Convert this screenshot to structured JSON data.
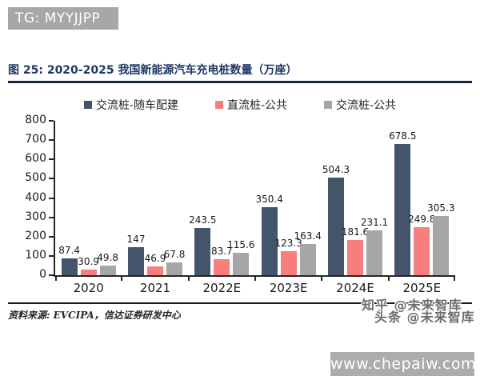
{
  "banner": {
    "text": "TG: MYYJJPP"
  },
  "figure": {
    "title": "图 25: 2020-2025 我国新能源汽车充电桩数量（万座）",
    "source": "资料来源: EVCIPA，信达证券研发中心"
  },
  "chart_data": {
    "type": "bar",
    "title": "2020-2025 我国新能源汽车充电桩数量（万座）",
    "categories": [
      "2020",
      "2021",
      "2022E",
      "2023E",
      "2024E",
      "2025E"
    ],
    "series": [
      {
        "name": "交流桩-随车配建",
        "color": "#44546a",
        "values": [
          87.4,
          147,
          243.5,
          350.4,
          504.3,
          678.5
        ]
      },
      {
        "name": "直流桩-公共",
        "color": "#f87d7d",
        "values": [
          30.9,
          46.9,
          83.7,
          123.3,
          181.6,
          249.8
        ]
      },
      {
        "name": "交流桩-公共",
        "color": "#a6a6a6",
        "values": [
          49.8,
          67.8,
          115.6,
          163.4,
          231.1,
          305.3
        ]
      }
    ],
    "ylim": [
      0,
      800
    ],
    "yticks": [
      0,
      100,
      200,
      300,
      400,
      500,
      600,
      700,
      800
    ],
    "xlabel": "",
    "ylabel": "",
    "grid": false,
    "legend_position": "top"
  },
  "watermarks": {
    "zhihu": "知乎 @未来智库",
    "toutiao": "头条 @未来智库",
    "site": "www.chepaiw.com"
  }
}
